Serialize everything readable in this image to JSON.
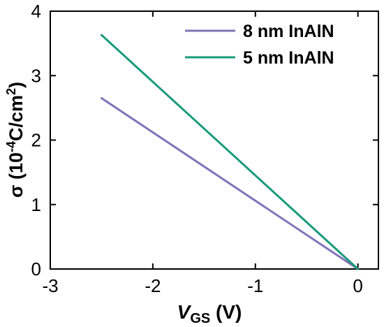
{
  "chart_data": {
    "type": "line",
    "xlabel": {
      "main": "V",
      "sub": "GS",
      "unit": " (V)"
    },
    "ylabel": {
      "prefix": "σ (10",
      "sup1": "-4",
      "mid": "C/cm",
      "sup2": "2",
      "suffix": ")"
    },
    "xlim": [
      -3.0,
      0.2
    ],
    "ylim": [
      0,
      4
    ],
    "xticks": [
      -3,
      -2,
      -1,
      0
    ],
    "yticks": [
      0,
      1,
      2,
      3,
      4
    ],
    "xtick_labels": [
      "-3",
      "-2",
      "-1",
      "0"
    ],
    "ytick_labels": [
      "0",
      "1",
      "2",
      "3",
      "4"
    ],
    "legend_position": "top-right",
    "series": [
      {
        "name": "8 nm InAlN",
        "color": "#8074B8",
        "x": [
          -2.5,
          0
        ],
        "y": [
          2.65,
          0
        ]
      },
      {
        "name": "5 nm InAlN",
        "color": "#1A9A7D",
        "x": [
          -2.5,
          0
        ],
        "y": [
          3.63,
          0
        ]
      }
    ]
  }
}
